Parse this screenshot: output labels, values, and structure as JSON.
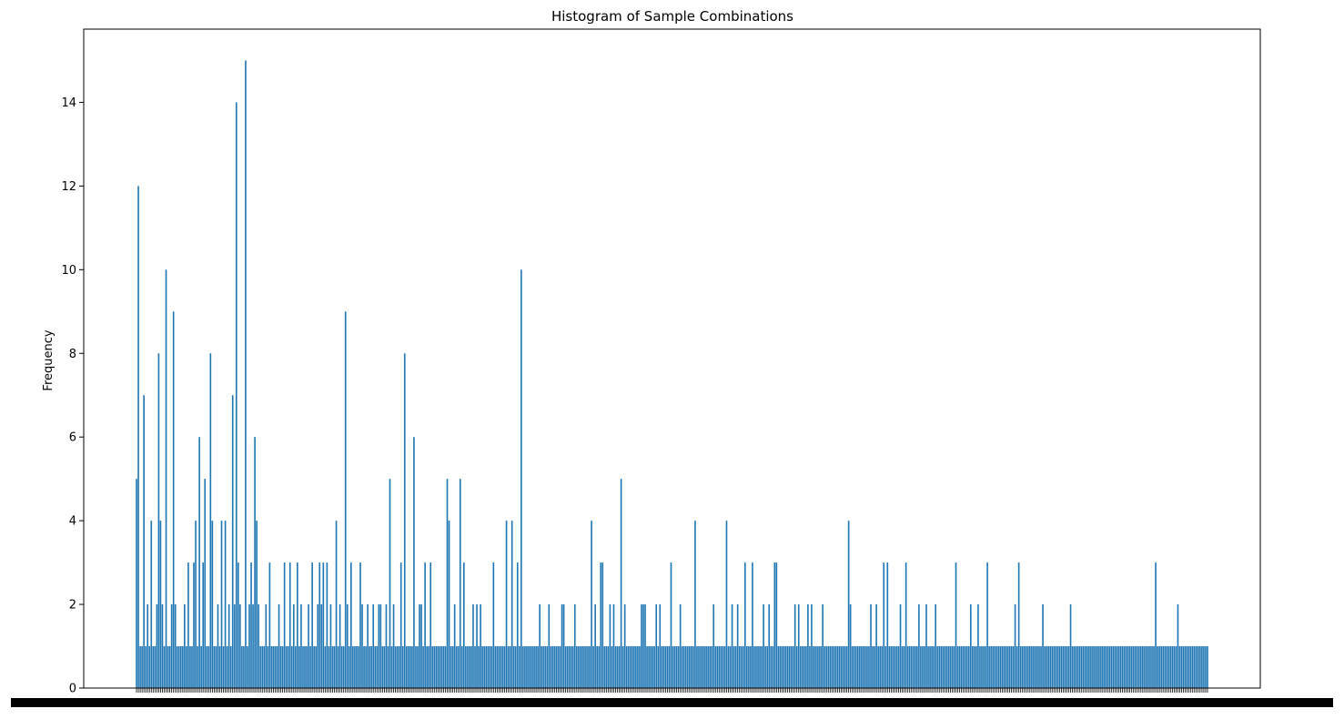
{
  "chart_data": {
    "type": "bar",
    "title": "Histogram of Sample Combinations",
    "xlabel": "",
    "ylabel": "Frequency",
    "ylim": [
      0,
      15.75
    ],
    "yticks": [
      0,
      2,
      4,
      6,
      8,
      10,
      12,
      14
    ],
    "bar_color": "#1f77b4",
    "grid": false,
    "category_count": 520,
    "values": [
      5,
      12,
      1,
      1,
      7,
      1,
      2,
      1,
      4,
      1,
      1,
      2,
      8,
      4,
      2,
      1,
      10,
      1,
      1,
      2,
      9,
      2,
      1,
      1,
      1,
      1,
      2,
      1,
      3,
      1,
      1,
      3,
      4,
      1,
      6,
      1,
      3,
      5,
      1,
      1,
      8,
      4,
      1,
      1,
      2,
      1,
      4,
      1,
      4,
      1,
      2,
      1,
      7,
      2,
      14,
      3,
      2,
      1,
      1,
      15,
      1,
      2,
      3,
      2,
      6,
      4,
      2,
      1,
      1,
      1,
      2,
      1,
      3,
      1,
      1,
      1,
      1,
      2,
      1,
      1,
      3,
      1,
      1,
      3,
      1,
      2,
      1,
      3,
      1,
      2,
      1,
      1,
      1,
      2,
      1,
      3,
      1,
      1,
      2,
      3,
      2,
      3,
      1,
      3,
      1,
      2,
      1,
      1,
      4,
      1,
      2,
      1,
      1,
      9,
      2,
      1,
      3,
      1,
      1,
      1,
      1,
      3,
      2,
      1,
      1,
      2,
      1,
      1,
      2,
      1,
      1,
      2,
      2,
      1,
      1,
      2,
      1,
      5,
      1,
      2,
      1,
      1,
      1,
      3,
      1,
      8,
      1,
      1,
      1,
      1,
      6,
      1,
      1,
      2,
      2,
      1,
      3,
      1,
      1,
      3,
      1,
      1,
      1,
      1,
      1,
      1,
      1,
      1,
      5,
      4,
      1,
      1,
      2,
      1,
      1,
      5,
      1,
      3,
      1,
      1,
      1,
      1,
      2,
      1,
      2,
      1,
      2,
      1,
      1,
      1,
      1,
      1,
      1,
      3,
      1,
      1,
      1,
      1,
      1,
      1,
      4,
      1,
      1,
      4,
      1,
      1,
      3,
      1,
      10,
      1,
      1,
      1,
      1,
      1,
      1,
      1,
      1,
      1,
      2,
      1,
      1,
      1,
      1,
      2,
      1,
      1,
      1,
      1,
      1,
      1,
      2,
      2,
      1,
      1,
      1,
      1,
      1,
      2,
      1,
      1,
      1,
      1,
      1,
      1,
      1,
      1,
      4,
      1,
      2,
      1,
      1,
      3,
      3,
      1,
      1,
      1,
      2,
      1,
      2,
      1,
      1,
      1,
      5,
      1,
      2,
      1,
      1,
      1,
      1,
      1,
      1,
      1,
      1,
      2,
      2,
      2,
      1,
      1,
      1,
      1,
      1,
      2,
      1,
      2,
      1,
      1,
      1,
      1,
      1,
      3,
      1,
      1,
      1,
      1,
      2,
      1,
      1,
      1,
      1,
      1,
      1,
      1,
      4,
      1,
      1,
      1,
      1,
      1,
      1,
      1,
      1,
      1,
      2,
      1,
      1,
      1,
      1,
      1,
      1,
      4,
      1,
      1,
      2,
      1,
      1,
      2,
      1,
      1,
      1,
      3,
      1,
      1,
      1,
      3,
      1,
      1,
      1,
      1,
      1,
      2,
      1,
      1,
      2,
      1,
      1,
      3,
      3,
      1,
      1,
      1,
      1,
      1,
      1,
      1,
      1,
      1,
      2,
      1,
      2,
      1,
      1,
      1,
      1,
      2,
      1,
      2,
      1,
      1,
      1,
      1,
      1,
      2,
      1,
      1,
      1,
      1,
      1,
      1,
      1,
      1,
      1,
      1,
      1,
      1,
      1,
      4,
      2,
      1,
      1,
      1,
      1,
      1,
      1,
      1,
      1,
      1,
      1,
      2,
      1,
      1,
      2,
      1,
      1,
      1,
      3,
      1,
      3,
      1,
      1,
      1,
      1,
      1,
      1,
      2,
      1,
      1,
      3,
      1,
      1,
      1,
      1,
      1,
      1,
      2,
      1,
      1,
      1,
      2,
      1,
      1,
      1,
      1,
      2,
      1,
      1,
      1,
      1,
      1,
      1,
      1,
      1,
      1,
      1,
      3,
      1,
      1,
      1,
      1,
      1,
      1,
      1,
      2,
      1,
      1,
      1,
      2,
      1,
      1,
      1,
      1,
      3,
      1,
      1,
      1,
      1,
      1,
      1,
      1,
      1,
      1,
      1,
      1,
      1,
      1,
      1,
      2,
      1,
      3,
      1,
      1,
      1,
      1,
      1,
      1,
      1,
      1,
      1,
      1,
      1,
      1,
      2,
      1,
      1,
      1,
      1,
      1,
      1,
      1,
      1,
      1,
      1,
      1,
      1,
      1,
      1,
      2,
      1,
      1,
      1,
      1,
      1,
      1,
      1,
      1,
      1,
      1,
      1,
      1,
      1,
      1,
      1,
      1,
      1,
      1,
      1,
      1,
      1,
      1,
      1,
      1,
      1,
      1,
      1,
      1,
      1,
      1,
      1,
      1,
      1,
      1,
      1,
      1,
      1,
      1,
      1,
      1,
      1,
      1,
      1,
      1,
      1,
      3,
      1,
      1,
      1,
      1,
      1,
      1,
      1,
      1,
      1,
      1,
      1,
      2,
      1,
      1,
      1,
      1,
      1,
      1,
      1,
      1,
      1,
      1,
      1,
      1,
      1,
      1,
      1,
      1
    ]
  }
}
